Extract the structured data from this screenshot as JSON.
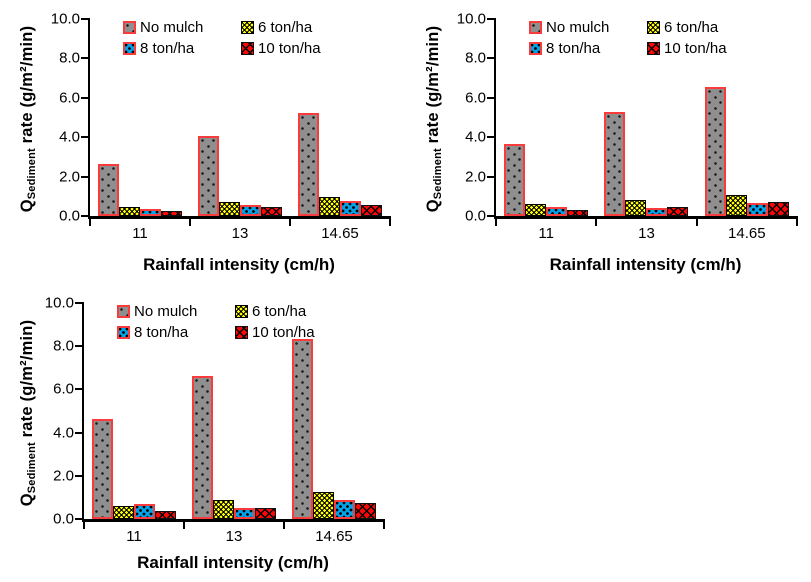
{
  "figure": {
    "background": "#FFFFFF",
    "colors": {
      "axis": "#000000",
      "no_mulch_fill": "#8F8F8F",
      "no_mulch_border": "#FA3B3B",
      "ton6_fill": "#FFFF00",
      "ton6_border": "#000000",
      "ton8_fill": "#00A3E8",
      "ton8_border": "#FA3B3B",
      "ton10_fill": "#FB0707",
      "ton10_border": "#000000"
    }
  },
  "y_axis": {
    "label_prefix": "Q",
    "label_subscript": "Sediment",
    "label_suffix": " rate (g/m²/min)",
    "ticks": [
      "0.0",
      "2.0",
      "4.0",
      "6.0",
      "8.0",
      "10.0"
    ]
  },
  "x_axis": {
    "label": "Rainfall intensity (cm/h)",
    "categories": [
      "11",
      "13",
      "14.65"
    ]
  },
  "legend": {
    "items": [
      "No mulch",
      "6 ton/ha",
      "8 ton/ha",
      "10 ton/ha"
    ]
  },
  "chart_data": [
    {
      "type": "bar",
      "position": "top-left",
      "title": "",
      "xlabel": "Rainfall intensity (cm/h)",
      "ylabel": "Q_Sediment rate (g/m²/min)",
      "ylim": [
        0,
        10
      ],
      "yticks": [
        "0.0",
        "2.0",
        "4.0",
        "6.0",
        "8.0",
        "10.0"
      ],
      "grid": false,
      "legend_position": "top-inside",
      "categories": [
        "11",
        "13",
        "14.65"
      ],
      "series": [
        {
          "id": "no-mulch",
          "name": "No mulch",
          "values": [
            2.65,
            4.05,
            5.25
          ]
        },
        {
          "id": "t6",
          "name": "6 ton/ha",
          "values": [
            0.45,
            0.7,
            0.95
          ]
        },
        {
          "id": "t8",
          "name": "8 ton/ha",
          "values": [
            0.37,
            0.55,
            0.75
          ]
        },
        {
          "id": "t10",
          "name": "10 ton/ha",
          "values": [
            0.27,
            0.45,
            0.58
          ]
        }
      ]
    },
    {
      "type": "bar",
      "position": "top-right",
      "title": "",
      "xlabel": "Rainfall intensity (cm/h)",
      "ylabel": "Q_Sediment rate (g/m²/min)",
      "ylim": [
        0,
        10
      ],
      "yticks": [
        "0.0",
        "2.0",
        "4.0",
        "6.0",
        "8.0",
        "10.0"
      ],
      "grid": false,
      "legend_position": "top-inside",
      "categories": [
        "11",
        "13",
        "14.65"
      ],
      "series": [
        {
          "id": "no-mulch",
          "name": "No mulch",
          "values": [
            3.65,
            5.3,
            6.55
          ]
        },
        {
          "id": "t6",
          "name": "6 ton/ha",
          "values": [
            0.6,
            0.8,
            1.05
          ]
        },
        {
          "id": "t8",
          "name": "8 ton/ha",
          "values": [
            0.45,
            0.42,
            0.65
          ]
        },
        {
          "id": "t10",
          "name": "10 ton/ha",
          "values": [
            0.33,
            0.48,
            0.7
          ]
        }
      ]
    },
    {
      "type": "bar",
      "position": "bottom-left",
      "title": "",
      "xlabel": "Rainfall intensity (cm/h)",
      "ylabel": "Q_Sediment rate (g/m²/min)",
      "ylim": [
        0,
        10
      ],
      "yticks": [
        "0.0",
        "2.0",
        "4.0",
        "6.0",
        "8.0",
        "10.0"
      ],
      "grid": false,
      "legend_position": "top-inside",
      "categories": [
        "11",
        "13",
        "14.65"
      ],
      "series": [
        {
          "id": "no-mulch",
          "name": "No mulch",
          "values": [
            4.65,
            6.6,
            8.35
          ]
        },
        {
          "id": "t6",
          "name": "6 ton/ha",
          "values": [
            0.62,
            0.9,
            1.27
          ]
        },
        {
          "id": "t8",
          "name": "8 ton/ha",
          "values": [
            0.68,
            0.52,
            0.9
          ]
        },
        {
          "id": "t10",
          "name": "10 ton/ha",
          "values": [
            0.38,
            0.5,
            0.75
          ]
        }
      ]
    }
  ]
}
